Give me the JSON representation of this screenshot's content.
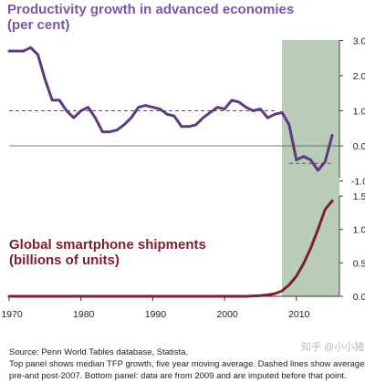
{
  "chart_data": [
    {
      "type": "line",
      "title": "Productivity growth in advanced economies",
      "subtitle": "(per cent)",
      "x": [
        1970,
        1971,
        1972,
        1973,
        1974,
        1975,
        1976,
        1977,
        1978,
        1979,
        1980,
        1981,
        1982,
        1983,
        1984,
        1985,
        1986,
        1987,
        1988,
        1989,
        1990,
        1991,
        1992,
        1993,
        1994,
        1995,
        1996,
        1997,
        1998,
        1999,
        2000,
        2001,
        2002,
        2003,
        2004,
        2005,
        2006,
        2007,
        2008,
        2009,
        2010,
        2011,
        2012,
        2013,
        2014,
        2015
      ],
      "series": [
        {
          "values": [
            2.7,
            2.7,
            2.7,
            2.8,
            2.6,
            1.9,
            1.3,
            1.3,
            1.0,
            0.8,
            1.0,
            1.1,
            0.8,
            0.4,
            0.4,
            0.45,
            0.6,
            0.8,
            1.1,
            1.15,
            1.1,
            1.05,
            0.9,
            0.85,
            0.55,
            0.55,
            0.6,
            0.8,
            0.95,
            1.1,
            1.05,
            1.3,
            1.25,
            1.1,
            1.0,
            1.05,
            0.8,
            0.9,
            0.95,
            0.6,
            -0.4,
            -0.3,
            -0.4,
            -0.7,
            -0.45,
            0.3
          ],
          "color": "#5c3a80"
        }
      ],
      "reference_lines": [
        {
          "label": "pre-2007 median",
          "x_start": 1970,
          "x_end": 2007,
          "y": 1.0
        },
        {
          "label": "post-2007 median",
          "x_start": 2009,
          "x_end": 2015,
          "y": -0.5
        }
      ],
      "y_axis_side": "right",
      "ylim": [
        -1.0,
        3.0
      ],
      "yticks": [
        "3.0",
        "2.0",
        "1.0",
        "0.0",
        "-1.0"
      ],
      "shaded_region": {
        "x_start": 2008,
        "x_end": 2016,
        "color": "#b9cbb9"
      }
    },
    {
      "type": "line",
      "title": "Global smartphone shipments",
      "subtitle": "(billions of units)",
      "x": [
        1970,
        1975,
        1980,
        1985,
        1990,
        1995,
        2000,
        2003,
        2005,
        2006,
        2007,
        2008,
        2009,
        2010,
        2011,
        2012,
        2013,
        2014,
        2015
      ],
      "series": [
        {
          "values": [
            0,
            0,
            0,
            0,
            0,
            0,
            0,
            0,
            0.01,
            0.02,
            0.04,
            0.08,
            0.17,
            0.3,
            0.49,
            0.72,
            1.0,
            1.3,
            1.43
          ],
          "color": "#7c1f2e"
        }
      ],
      "y_axis_side": "right",
      "ylim": [
        0.0,
        1.5
      ],
      "yticks": [
        "1.5",
        "1.0",
        "0.5",
        "0.0"
      ],
      "xticks": [
        "1970",
        "1980",
        "1990",
        "2000",
        "2010"
      ],
      "xlim": [
        1970,
        2016
      ],
      "shaded_region": {
        "x_start": 2008,
        "x_end": 2016,
        "color": "#b9cbb9"
      }
    }
  ],
  "footnote": {
    "line1": "Top panel shows median TFP growth, five year moving average.  Dashed lines show averages",
    "line2": "pre-and post-2007.  Bottom panel:  data are from 2009 and are imputed before that point."
  },
  "source": "Source:  Penn World Tables database, Statista.",
  "watermark": "知乎 @小小猪"
}
